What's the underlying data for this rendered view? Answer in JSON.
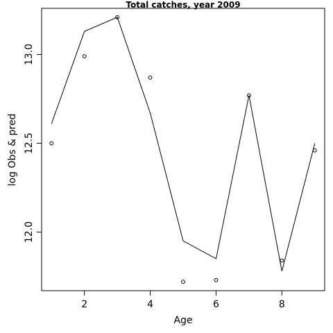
{
  "chart_data": {
    "type": "line",
    "title": "Total catches, year 2009",
    "xlabel": "Age",
    "ylabel": "log Obs & pred",
    "xlim": [
      0.7,
      9.3
    ],
    "ylim": [
      11.67,
      13.26
    ],
    "x_ticks": [
      2,
      4,
      6,
      8
    ],
    "x_tick_labels": [
      "2",
      "4",
      "6",
      "8"
    ],
    "y_ticks": [
      12.0,
      12.5,
      13.0
    ],
    "y_tick_labels": [
      "12.0",
      "12.5",
      "13.0"
    ],
    "grid": false,
    "series": [
      {
        "style": "line",
        "x": [
          1,
          2,
          3,
          4,
          5,
          6,
          7,
          8,
          9
        ],
        "values": [
          12.61,
          13.13,
          13.21,
          12.67,
          11.95,
          11.85,
          12.77,
          11.78,
          12.5
        ]
      },
      {
        "style": "points",
        "x": [
          1,
          2,
          3,
          4,
          5,
          6,
          7,
          8,
          9
        ],
        "values": [
          12.5,
          12.99,
          13.21,
          12.87,
          11.72,
          11.73,
          12.77,
          11.84,
          12.46
        ]
      }
    ]
  }
}
